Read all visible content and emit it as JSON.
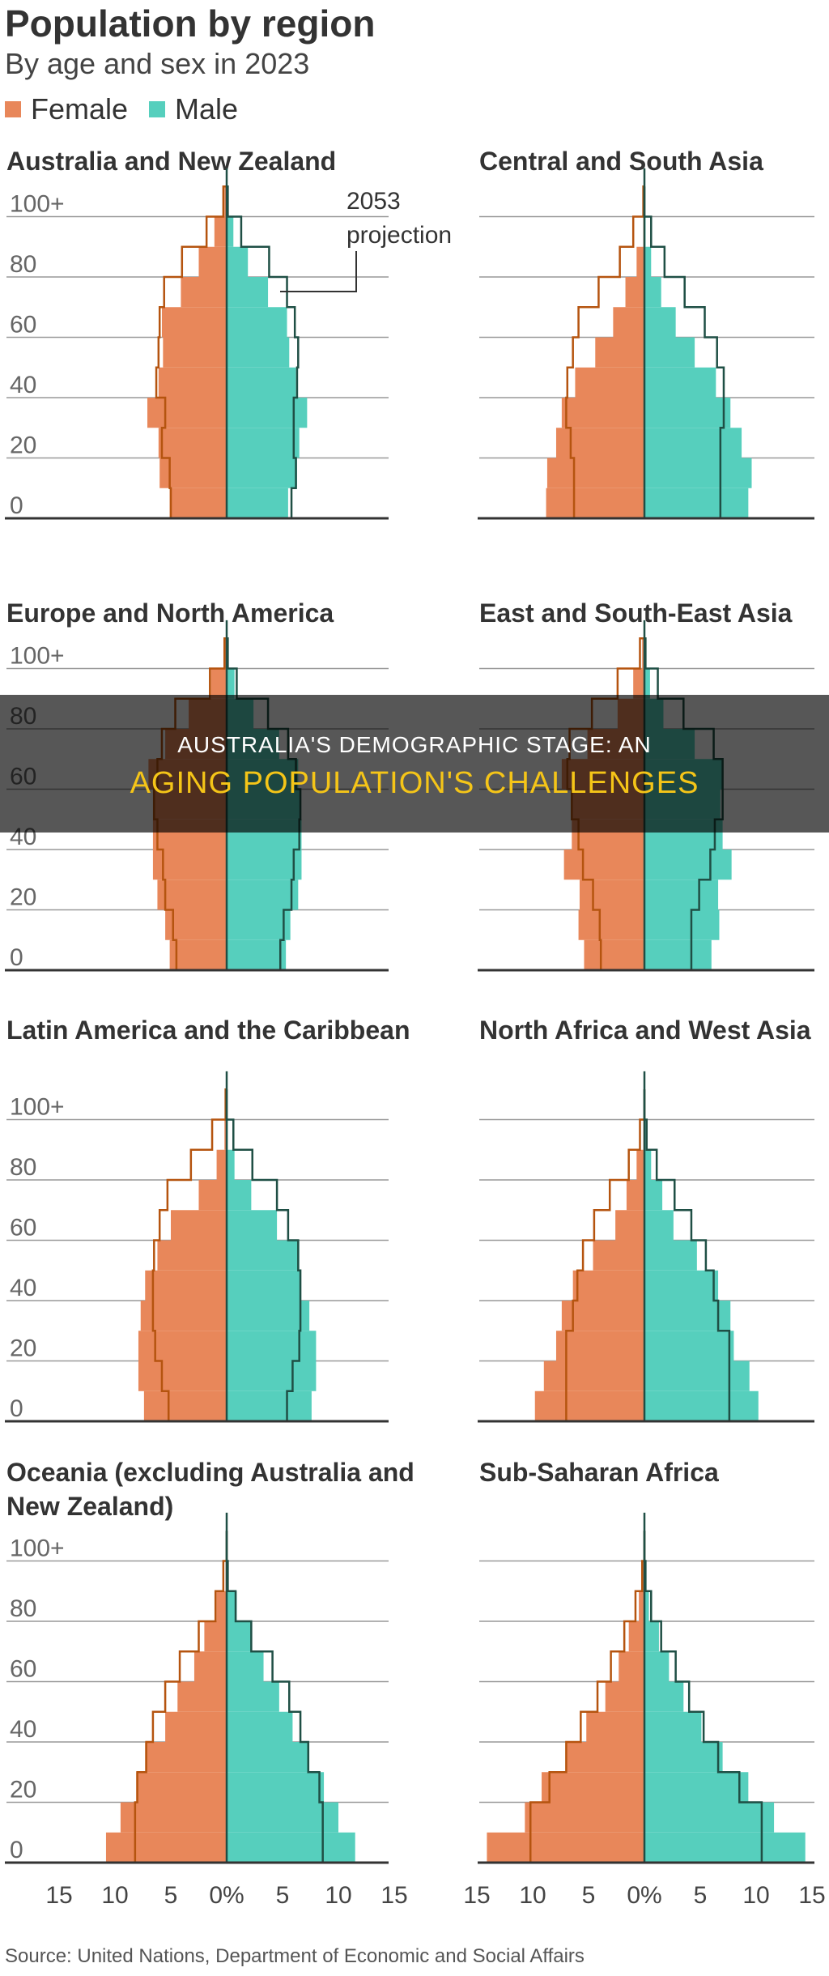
{
  "title": "Population by region",
  "subtitle": "By age and sex in 2023",
  "legend": [
    {
      "label": "Female",
      "color": "#e8875a"
    },
    {
      "label": "Male",
      "color": "#56cfbd"
    }
  ],
  "source": "Source: United Nations, Department of Economic and Social Affairs",
  "overlay": {
    "line1": "AUSTRALIA'S DEMOGRAPHIC STAGE: AN",
    "line2": "AGING POPULATION'S CHALLENGES"
  },
  "colors": {
    "female": "#e8875a",
    "male": "#56cfbd",
    "female_outline": "#b5540f",
    "male_outline": "#1f4f45",
    "grid": "#999999",
    "axis": "#333333"
  },
  "chart_data": [
    {
      "type": "bar",
      "title": "Australia and New Zealand",
      "annotation": "2053 projection",
      "age_groups": [
        "0-9",
        "10-19",
        "20-29",
        "30-39",
        "40-49",
        "50-59",
        "60-69",
        "70-79",
        "80-89",
        "90-99",
        "100+"
      ],
      "female_2023": [
        5.1,
        6.0,
        6.1,
        7.1,
        6.1,
        5.7,
        5.8,
        4.1,
        2.5,
        1.1,
        0.2
      ],
      "male_2023": [
        5.5,
        6.3,
        6.5,
        7.2,
        6.2,
        5.6,
        5.4,
        3.7,
        1.9,
        0.6,
        0.1
      ],
      "female_2053": [
        5.0,
        5.1,
        5.8,
        5.5,
        6.3,
        6.1,
        6.0,
        5.6,
        4.0,
        1.8,
        0.3
      ],
      "male_2053": [
        5.8,
        6.2,
        6.0,
        6.0,
        6.3,
        6.4,
        6.1,
        5.4,
        3.8,
        1.3,
        0.1
      ],
      "xlim": [
        -15,
        15
      ]
    },
    {
      "type": "bar",
      "title": "Central and South Asia",
      "age_groups": [
        "0-9",
        "10-19",
        "20-29",
        "30-39",
        "40-49",
        "50-59",
        "60-69",
        "70-79",
        "80-89",
        "90-99",
        "100+"
      ],
      "female_2023": [
        8.8,
        8.7,
        7.9,
        7.4,
        6.2,
        4.4,
        2.8,
        1.7,
        0.7,
        0.1,
        0.0
      ],
      "male_2023": [
        9.3,
        9.6,
        8.7,
        7.7,
        6.4,
        4.5,
        2.8,
        1.5,
        0.6,
        0.1,
        0.0
      ],
      "female_2053": [
        6.3,
        6.3,
        6.6,
        7.0,
        6.9,
        6.4,
        5.9,
        4.1,
        2.2,
        1.0,
        0.1
      ],
      "male_2053": [
        6.8,
        6.8,
        6.8,
        7.1,
        7.1,
        6.5,
        5.4,
        3.6,
        1.8,
        0.6,
        0.0
      ],
      "xlim": [
        -15,
        15
      ]
    },
    {
      "type": "bar",
      "title": "Europe and North America",
      "age_groups": [
        "0-9",
        "10-19",
        "20-29",
        "30-39",
        "40-49",
        "50-59",
        "60-69",
        "70-79",
        "80-89",
        "90-99",
        "100+"
      ],
      "female_2023": [
        5.1,
        5.5,
        6.2,
        6.6,
        6.6,
        6.6,
        7.0,
        5.5,
        3.4,
        1.4,
        0.2
      ],
      "male_2023": [
        5.3,
        5.7,
        6.4,
        6.7,
        6.7,
        6.6,
        6.4,
        4.7,
        2.4,
        0.7,
        0.1
      ],
      "female_2053": [
        4.5,
        4.8,
        5.5,
        5.7,
        6.2,
        6.5,
        6.2,
        5.8,
        4.6,
        1.5,
        0.2
      ],
      "male_2053": [
        4.8,
        5.1,
        5.8,
        6.0,
        6.5,
        6.6,
        6.2,
        5.5,
        3.7,
        0.9,
        0.1
      ],
      "xlim": [
        -15,
        15
      ]
    },
    {
      "type": "bar",
      "title": "East and South-East Asia",
      "age_groups": [
        "0-9",
        "10-19",
        "20-29",
        "30-39",
        "40-49",
        "50-59",
        "60-69",
        "70-79",
        "80-89",
        "90-99",
        "100+"
      ],
      "female_2023": [
        5.4,
        5.9,
        5.8,
        7.2,
        6.5,
        6.5,
        7.4,
        5.1,
        2.4,
        1.0,
        0.2
      ],
      "male_2023": [
        6.0,
        6.7,
        6.6,
        7.8,
        7.0,
        6.8,
        7.0,
        4.5,
        1.7,
        0.5,
        0.1
      ],
      "female_2053": [
        3.9,
        4.0,
        4.6,
        5.5,
        5.9,
        6.5,
        6.9,
        6.7,
        4.7,
        2.4,
        0.4
      ],
      "male_2053": [
        4.2,
        4.2,
        4.9,
        5.9,
        6.3,
        7.0,
        7.0,
        6.2,
        3.5,
        1.2,
        0.1
      ],
      "xlim": [
        -15,
        15
      ]
    },
    {
      "type": "bar",
      "title": "Latin America and the Caribbean",
      "age_groups": [
        "0-9",
        "10-19",
        "20-29",
        "30-39",
        "40-49",
        "50-59",
        "60-69",
        "70-79",
        "80-89",
        "90-99",
        "100+"
      ],
      "female_2023": [
        7.4,
        7.9,
        7.9,
        7.7,
        7.3,
        6.2,
        5.0,
        2.5,
        0.9,
        0.2,
        0.0
      ],
      "male_2023": [
        7.6,
        8.0,
        8.0,
        7.4,
        6.6,
        6.5,
        4.5,
        2.2,
        0.7,
        0.1,
        0.0
      ],
      "female_2053": [
        5.2,
        5.8,
        6.4,
        6.6,
        6.6,
        6.5,
        6.0,
        5.3,
        3.2,
        1.3,
        0.1
      ],
      "male_2053": [
        5.4,
        5.9,
        6.5,
        6.6,
        6.6,
        6.4,
        5.5,
        4.5,
        2.3,
        0.6,
        0.0
      ],
      "xlim": [
        -15,
        15
      ]
    },
    {
      "type": "bar",
      "title": "North Africa and West Asia",
      "age_groups": [
        "0-9",
        "10-19",
        "20-29",
        "30-39",
        "40-49",
        "50-59",
        "60-69",
        "70-79",
        "80-89",
        "90-99",
        "100+"
      ],
      "female_2023": [
        9.8,
        9.0,
        7.9,
        7.4,
        6.4,
        4.6,
        2.6,
        1.6,
        0.7,
        0.1,
        0.0
      ],
      "male_2023": [
        10.2,
        9.4,
        8.0,
        7.7,
        6.6,
        4.7,
        2.6,
        1.6,
        0.6,
        0.1,
        0.0
      ],
      "female_2053": [
        7.0,
        7.0,
        7.0,
        6.4,
        6.0,
        5.5,
        4.5,
        3.1,
        1.4,
        0.4,
        0.0
      ],
      "male_2053": [
        7.6,
        7.6,
        7.6,
        6.6,
        6.2,
        5.5,
        4.2,
        2.7,
        1.1,
        0.2,
        0.0
      ],
      "xlim": [
        -15,
        15
      ]
    },
    {
      "type": "bar",
      "title": "Oceania (excluding Australia and New Zealand)",
      "age_groups": [
        "0-9",
        "10-19",
        "20-29",
        "30-39",
        "40-49",
        "50-59",
        "60-69",
        "70-79",
        "80-89",
        "90-99",
        "100+"
      ],
      "female_2023": [
        10.8,
        9.5,
        8.1,
        7.3,
        5.5,
        4.4,
        2.9,
        2.0,
        0.9,
        0.1,
        0.0
      ],
      "male_2023": [
        11.5,
        10.0,
        8.7,
        7.4,
        5.9,
        4.7,
        3.3,
        2.2,
        0.9,
        0.1,
        0.0
      ],
      "female_2053": [
        8.2,
        8.2,
        8.0,
        7.2,
        6.6,
        5.5,
        4.2,
        2.5,
        1.0,
        0.3,
        0.0
      ],
      "male_2053": [
        8.6,
        8.6,
        8.3,
        7.3,
        6.6,
        5.6,
        4.1,
        2.2,
        0.8,
        0.1,
        0.0
      ],
      "xlim": [
        -15,
        15
      ]
    },
    {
      "type": "bar",
      "title": "Sub-Saharan Africa",
      "age_groups": [
        "0-9",
        "10-19",
        "20-29",
        "30-39",
        "40-49",
        "50-59",
        "60-69",
        "70-79",
        "80-89",
        "90-99",
        "100+"
      ],
      "female_2023": [
        14.1,
        10.7,
        9.2,
        7.0,
        5.2,
        3.5,
        2.3,
        1.4,
        0.5,
        0.1,
        0.0
      ],
      "male_2023": [
        14.4,
        11.6,
        9.3,
        7.0,
        5.1,
        3.5,
        2.2,
        1.3,
        0.4,
        0.1,
        0.0
      ],
      "female_2053": [
        10.2,
        10.2,
        8.5,
        7.0,
        5.7,
        4.2,
        3.0,
        1.8,
        0.8,
        0.2,
        0.0
      ],
      "male_2053": [
        10.5,
        10.5,
        8.5,
        6.6,
        5.3,
        4.0,
        2.8,
        1.5,
        0.6,
        0.1,
        0.0
      ],
      "xlim": [
        -15,
        15
      ]
    }
  ],
  "y_tick_labels": [
    "0",
    "20",
    "40",
    "60",
    "80",
    "100+"
  ],
  "x_tick_labels": [
    "15",
    "10",
    "5",
    "0%",
    "5",
    "10",
    "15"
  ]
}
